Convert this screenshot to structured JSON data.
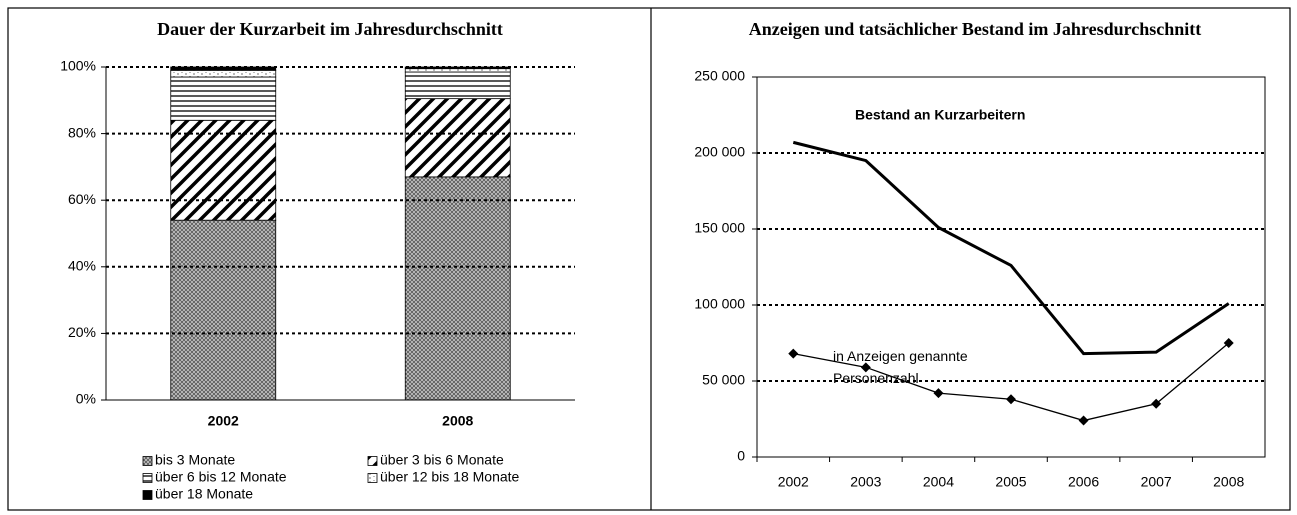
{
  "chart_data": [
    {
      "type": "stacked_bar",
      "title": "Dauer der Kurzarbeit im Jahresdurchschnitt",
      "categories": [
        "2002",
        "2008"
      ],
      "series": [
        {
          "name": "bis 3 Monate",
          "color": "#808080",
          "pattern": "crosshatch",
          "values": [
            54,
            67
          ]
        },
        {
          "name": "über 3 bis 6 Monate",
          "color": "#000000",
          "pattern": "diagonal",
          "values": [
            30,
            23.5
          ]
        },
        {
          "name": "über 6 bis 12 Monate",
          "color": "#000000",
          "pattern": "horizontal",
          "values": [
            13,
            8
          ]
        },
        {
          "name": "über 12 bis 18 Monate",
          "color": "#999999",
          "pattern": "dotted",
          "values": [
            2,
            1
          ]
        },
        {
          "name": "über 18 Monate",
          "color": "#000000",
          "pattern": "solid",
          "values": [
            1,
            0.5
          ]
        }
      ],
      "ylim": [
        0,
        100
      ],
      "yticks": [
        {
          "value": 0,
          "label": "0%"
        },
        {
          "value": 20,
          "label": "20%"
        },
        {
          "value": 40,
          "label": "40%"
        },
        {
          "value": 60,
          "label": "60%"
        },
        {
          "value": 80,
          "label": "80%"
        },
        {
          "value": 100,
          "label": "100%"
        }
      ],
      "grid": true
    },
    {
      "type": "line",
      "title": "Anzeigen und tatsächlicher Bestand im Jahresdurchschnitt",
      "categories": [
        "2002",
        "2003",
        "2004",
        "2005",
        "2006",
        "2007",
        "2008"
      ],
      "series": [
        {
          "name": "Bestand an Kurzarbeitern",
          "color": "#000000",
          "values": [
            207000,
            195000,
            151000,
            126000,
            68000,
            69000,
            101000
          ]
        },
        {
          "name": "in Anzeigen genannte Personenzahl",
          "color": "#000000",
          "values": [
            68000,
            59000,
            42000,
            38000,
            24000,
            35000,
            75000
          ]
        }
      ],
      "ylim": [
        0,
        250000
      ],
      "yticks": [
        0,
        {
          "value": 50000,
          "label": "50 000"
        },
        {
          "value": 100000,
          "label": "100 000"
        },
        {
          "value": 150000,
          "label": "150 000"
        },
        {
          "value": 200000,
          "label": "200 000"
        },
        {
          "value": 250000,
          "label": "250 000"
        }
      ],
      "grid": true
    }
  ]
}
